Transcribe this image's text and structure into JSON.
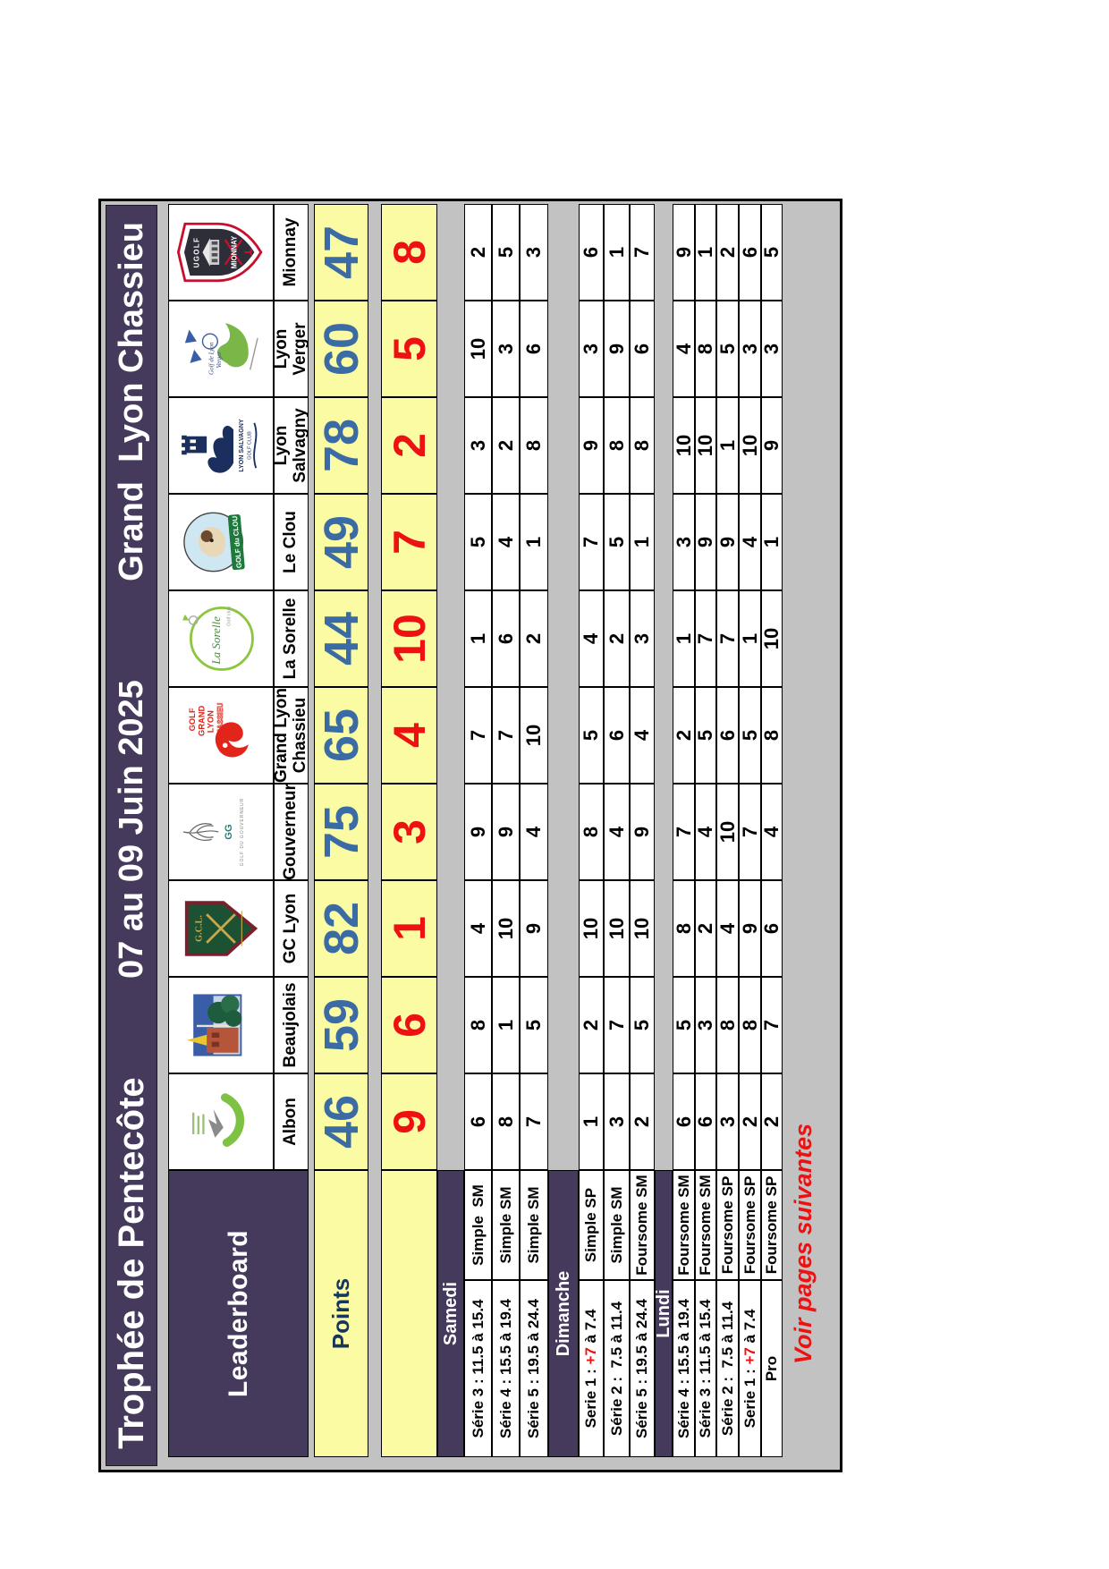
{
  "colors": {
    "purple": "#453a5c",
    "yellow": "#fbfba4",
    "blue": "#3a6ba5",
    "red": "#ee1111",
    "navy": "#16365c",
    "gray": "#c2c2c2"
  },
  "header": {
    "title": "Trophée de Pentecôte",
    "dates": "07 au 09 Juin 2025",
    "host": "Grand  Lyon Chassieu"
  },
  "labels": {
    "leaderboard": "Leaderboard",
    "points": "Points"
  },
  "notice": "Voir pages suivantes",
  "sections": [
    {
      "label": "Samedi",
      "series": [
        {
          "label_pre": "Série 3 : 11.5 à 15.4",
          "label_red": "",
          "label_post": "",
          "format": "Simple  SM"
        },
        {
          "label_pre": "Série 4 : 15.5 à 19.4",
          "label_red": "",
          "label_post": "",
          "format": "Simple SM"
        },
        {
          "label_pre": "Série 5 : 19.5 à 24.4",
          "label_red": "",
          "label_post": "",
          "format": "Simple SM"
        }
      ]
    },
    {
      "label": "Dimanche",
      "series": [
        {
          "label_pre": "Serie 1 : ",
          "label_red": "+7",
          "label_post": " à 7.4",
          "format": "Simple SP"
        },
        {
          "label_pre": "Série 2 :  7.5 à 11.4",
          "label_red": "",
          "label_post": "",
          "format": "Simple SM"
        },
        {
          "label_pre": "Série 5 : 19.5 à 24.4",
          "label_red": "",
          "label_post": "",
          "format": "Foursome SM"
        }
      ]
    },
    {
      "label": "Lundi",
      "series": [
        {
          "label_pre": "Série 4 : 15.5 à 19.4",
          "label_red": "",
          "label_post": "",
          "format": "Foursome SM"
        },
        {
          "label_pre": "Série 3 : 11.5 à 15.4",
          "label_red": "",
          "label_post": "",
          "format": "Foursome SM"
        },
        {
          "label_pre": "Série 2 :  7.5 à 11.4",
          "label_red": "",
          "label_post": "",
          "format": "Foursome SP"
        },
        {
          "label_pre": "Serie 1 : ",
          "label_red": "+7",
          "label_post": " à 7.4",
          "format": "Foursome SP"
        },
        {
          "label_pre": "Pro",
          "label_red": "",
          "label_post": "",
          "format": "Foursome SP"
        }
      ]
    }
  ],
  "clubs": [
    {
      "name": "Albon",
      "logo": "albon",
      "logo_text": [],
      "points": 46,
      "rank": 9,
      "scores": [
        6,
        8,
        7,
        1,
        3,
        2,
        6,
        6,
        3,
        2,
        2
      ]
    },
    {
      "name": "Beaujolais",
      "logo": "beaujolais",
      "logo_text": [],
      "points": 59,
      "rank": 6,
      "scores": [
        8,
        1,
        5,
        2,
        7,
        5,
        5,
        3,
        8,
        8,
        7
      ]
    },
    {
      "name": "GC Lyon",
      "logo": "gc-lyon",
      "logo_text": [
        "G.C.L."
      ],
      "points": 82,
      "rank": 1,
      "scores": [
        4,
        10,
        9,
        10,
        10,
        10,
        8,
        2,
        4,
        9,
        6
      ]
    },
    {
      "name": "Gouverneur",
      "logo": "gouverneur",
      "logo_text": [
        "GG",
        "GOLF DU GOUVERNEUR"
      ],
      "points": 75,
      "rank": 3,
      "scores": [
        9,
        9,
        4,
        8,
        4,
        9,
        7,
        4,
        10,
        7,
        4
      ]
    },
    {
      "name": "Grand Lyon\nChassieu",
      "logo": "grand-lyon-chassieu",
      "logo_text": [
        "GOLF",
        "GRAND",
        "LYON",
        "CHASSIEU"
      ],
      "points": 65,
      "rank": 4,
      "scores": [
        7,
        7,
        10,
        5,
        6,
        4,
        2,
        5,
        6,
        5,
        8
      ]
    },
    {
      "name": "La Sorelle",
      "logo": "la-sorelle",
      "logo_text": [
        "La Sorelle",
        "Golf club"
      ],
      "points": 44,
      "rank": 10,
      "scores": [
        1,
        6,
        2,
        4,
        2,
        3,
        1,
        7,
        7,
        1,
        10
      ]
    },
    {
      "name": "Le Clou",
      "logo": "le-clou",
      "logo_text": [
        "GOLF du CLOU"
      ],
      "points": 49,
      "rank": 7,
      "scores": [
        5,
        4,
        1,
        7,
        5,
        1,
        3,
        9,
        9,
        4,
        1
      ]
    },
    {
      "name": "Lyon\nSalvagny",
      "logo": "lyon-salvagny",
      "logo_text": [
        "LYON SALVAGNY",
        "GOLF CLUB"
      ],
      "points": 78,
      "rank": 2,
      "scores": [
        3,
        2,
        8,
        9,
        8,
        8,
        10,
        10,
        1,
        10,
        9
      ]
    },
    {
      "name": "Lyon Verger",
      "logo": "lyon-verger",
      "logo_text": [
        "Golf de Lyon",
        "Verger"
      ],
      "points": 60,
      "rank": 5,
      "scores": [
        10,
        3,
        6,
        3,
        9,
        6,
        4,
        8,
        5,
        3,
        3
      ]
    },
    {
      "name": "Mionnay",
      "logo": "mionnay",
      "logo_text": [
        "UGOLF",
        "MIONNAY"
      ],
      "points": 47,
      "rank": 8,
      "scores": [
        2,
        5,
        3,
        6,
        1,
        7,
        9,
        1,
        2,
        6,
        5
      ]
    }
  ]
}
